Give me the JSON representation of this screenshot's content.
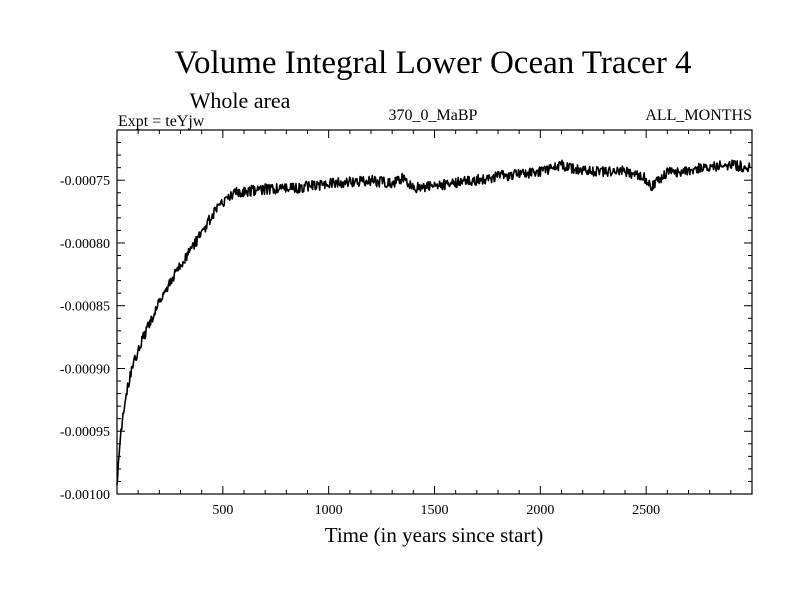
{
  "chart_data": {
    "type": "line",
    "title": "Volume Integral Lower Ocean Tracer 4",
    "subtitle": "Whole area",
    "expt_label": "Expt = teYjw",
    "period_label": "370_0_MaBP",
    "months_label": "ALL_MONTHS",
    "xlabel": "Time (in years since start)",
    "ylabel": "",
    "xlim": [
      0,
      3000
    ],
    "ylim": [
      -0.001,
      -0.00071
    ],
    "xticks": [
      500,
      1000,
      1500,
      2000,
      2500
    ],
    "xtick_labels": [
      "500",
      "1000",
      "1500",
      "2000",
      "2500"
    ],
    "yticks": [
      -0.001,
      -0.00095,
      -0.0009,
      -0.00085,
      -0.0008,
      -0.00075
    ],
    "ytick_labels": [
      "-0.00100",
      "-0.00095",
      "-0.00090",
      "-0.00085",
      "-0.00080",
      "-0.00075"
    ],
    "series": [
      {
        "name": "Lower Ocean Tracer 4",
        "color": "#000000",
        "x": [
          0,
          10,
          25,
          50,
          75,
          100,
          150,
          200,
          250,
          300,
          350,
          400,
          450,
          500,
          550,
          600,
          650,
          700,
          800,
          900,
          1000,
          1100,
          1200,
          1300,
          1350,
          1400,
          1500,
          1600,
          1700,
          1800,
          1900,
          2000,
          2100,
          2200,
          2300,
          2400,
          2500,
          2520,
          2600,
          2700,
          2800,
          2900,
          2990
        ],
        "values": [
          -0.00099,
          -0.000965,
          -0.00094,
          -0.000915,
          -0.000898,
          -0.000885,
          -0.000865,
          -0.000848,
          -0.000832,
          -0.000818,
          -0.000805,
          -0.000792,
          -0.000778,
          -0.000768,
          -0.00076,
          -0.000759,
          -0.000758,
          -0.000757,
          -0.000757,
          -0.000755,
          -0.000753,
          -0.000751,
          -0.00075,
          -0.000753,
          -0.000748,
          -0.000756,
          -0.000755,
          -0.000752,
          -0.00075,
          -0.000747,
          -0.000745,
          -0.000743,
          -0.000738,
          -0.000743,
          -0.000743,
          -0.000743,
          -0.000749,
          -0.000756,
          -0.000744,
          -0.000742,
          -0.00074,
          -0.000738,
          -0.00074
        ]
      }
    ]
  }
}
